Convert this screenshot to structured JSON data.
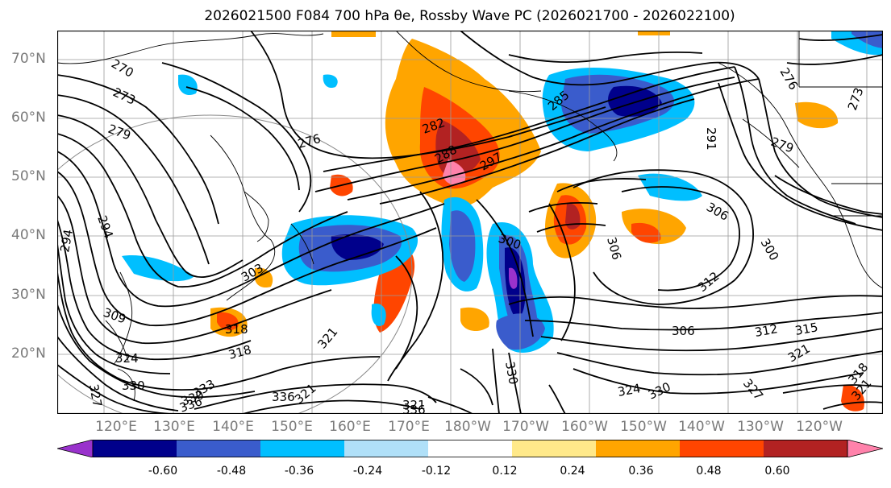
{
  "title": "2026021500 F084 700 hPa θe, Rossby Wave PC (2026021700 - 2026022100)",
  "lat_labels": [
    "70°N",
    "60°N",
    "50°N",
    "40°N",
    "30°N",
    "20°N"
  ],
  "lon_labels": [
    "120°E",
    "130°E",
    "140°E",
    "150°E",
    "160°E",
    "170°E",
    "180°W",
    "170°W",
    "160°W",
    "150°W",
    "140°W",
    "130°W",
    "120°W"
  ],
  "colorbar": {
    "colors": [
      "#9932cc",
      "#00008b",
      "#3a5ccc",
      "#00bfff",
      "#b0e0f8",
      "#ffffff",
      "#ffe98a",
      "#ffa500",
      "#ff4500",
      "#b22222",
      "#ff82ab"
    ],
    "tick_labels": [
      "-0.60",
      "-0.48",
      "-0.36",
      "-0.24",
      "-0.12",
      "0.12",
      "0.24",
      "0.36",
      "0.48",
      "0.60"
    ]
  },
  "contour_labels": [
    "270",
    "273",
    "279",
    "276",
    "282",
    "288",
    "297",
    "294",
    "303",
    "309",
    "318",
    "321",
    "324",
    "330",
    "333",
    "336",
    "327",
    "300",
    "306",
    "312",
    "315",
    "276",
    "273",
    "276",
    "285",
    "279",
    "291",
    "294",
    "297",
    "306",
    "300",
    "306",
    "312",
    "321",
    "324",
    "327",
    "330",
    "318",
    "321",
    "336",
    "321",
    "327",
    "330"
  ]
}
